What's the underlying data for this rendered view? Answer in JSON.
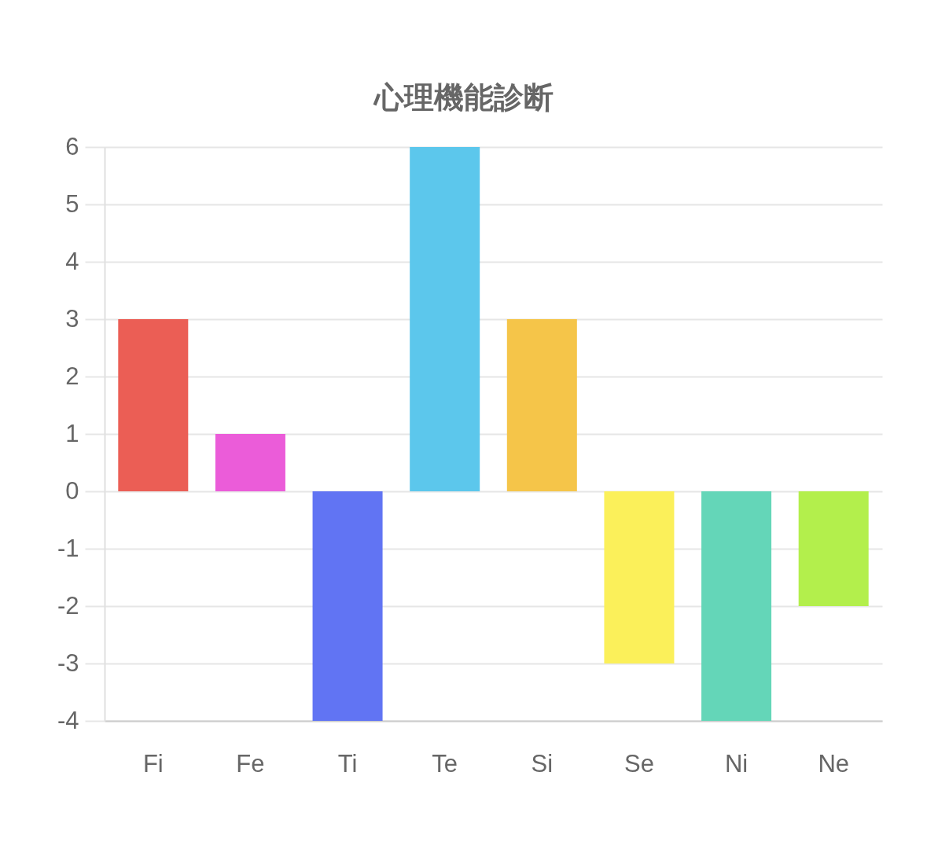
{
  "chart_data": {
    "type": "bar",
    "title": "心理機能診断",
    "categories": [
      "Fi",
      "Fe",
      "Ti",
      "Te",
      "Si",
      "Se",
      "Ni",
      "Ne"
    ],
    "values": [
      3,
      1,
      -4,
      6,
      3,
      -3,
      -4,
      -2
    ],
    "colors": [
      "#eb5e55",
      "#eb5cd9",
      "#6174f3",
      "#5cc7ec",
      "#f5c549",
      "#fbf05a",
      "#64d6b8",
      "#b3ef4c"
    ],
    "ylim": [
      -4,
      6
    ],
    "yticks": [
      -4,
      -3,
      -2,
      -1,
      0,
      1,
      2,
      3,
      4,
      5,
      6
    ],
    "grid": "y"
  }
}
